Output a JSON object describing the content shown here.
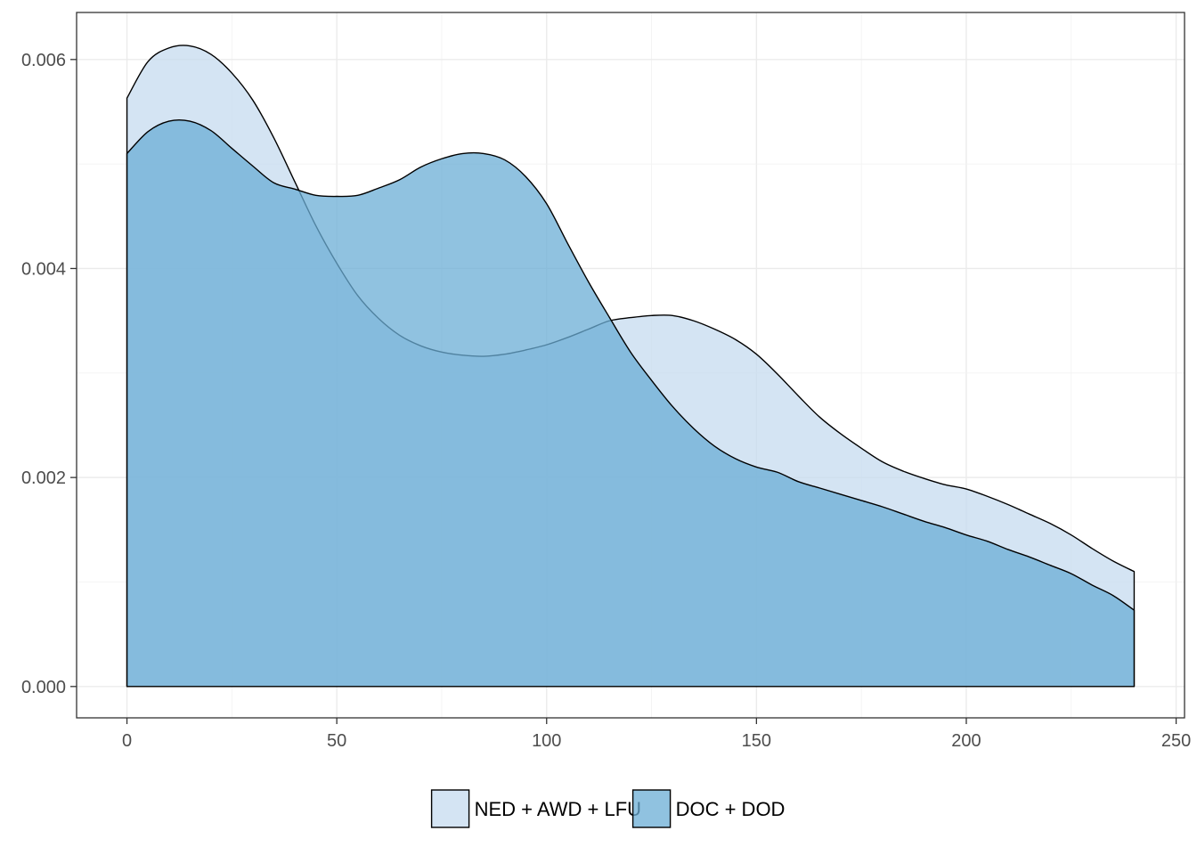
{
  "chart_data": {
    "type": "area",
    "subtype": "density",
    "title": "",
    "xlabel": "",
    "ylabel": "",
    "xlim": [
      -12,
      252
    ],
    "ylim": [
      -0.0003,
      0.00645
    ],
    "x_ticks": [
      0,
      50,
      100,
      150,
      200,
      250
    ],
    "x_tick_labels": [
      "0",
      "50",
      "100",
      "150",
      "200",
      "250"
    ],
    "y_ticks": [
      0.0,
      0.002,
      0.004,
      0.006
    ],
    "y_tick_labels": [
      "0.000",
      "0.002",
      "0.004",
      "0.006"
    ],
    "grid": true,
    "legend_position": "bottom",
    "series": [
      {
        "name": "NED + AWD + LFU",
        "color": "#c6dbef",
        "opacity": 0.75,
        "x": [
          0,
          5,
          10,
          15,
          20,
          25,
          30,
          35,
          40,
          45,
          50,
          55,
          60,
          65,
          70,
          75,
          80,
          85,
          90,
          95,
          100,
          105,
          110,
          115,
          120,
          125,
          130,
          135,
          140,
          145,
          150,
          155,
          160,
          165,
          170,
          175,
          180,
          185,
          190,
          195,
          200,
          205,
          210,
          215,
          220,
          225,
          230,
          235,
          240
        ],
        "y": [
          0.00563,
          0.00598,
          0.00611,
          0.00613,
          0.00605,
          0.00587,
          0.00561,
          0.00525,
          0.00483,
          0.00441,
          0.00405,
          0.00374,
          0.00352,
          0.00336,
          0.00326,
          0.0032,
          0.00317,
          0.00316,
          0.00318,
          0.00322,
          0.00327,
          0.00334,
          0.00342,
          0.0035,
          0.00353,
          0.00355,
          0.00355,
          0.0035,
          0.00342,
          0.00332,
          0.00318,
          0.00299,
          0.00278,
          0.00258,
          0.00242,
          0.00228,
          0.00215,
          0.00206,
          0.00199,
          0.00193,
          0.00189,
          0.00182,
          0.00174,
          0.00165,
          0.00156,
          0.00145,
          0.00132,
          0.0012,
          0.0011
        ]
      },
      {
        "name": "DOC + DOD",
        "color": "#6baed6",
        "opacity": 0.75,
        "x": [
          0,
          5,
          10,
          15,
          20,
          25,
          30,
          35,
          40,
          45,
          50,
          55,
          60,
          65,
          70,
          75,
          80,
          85,
          90,
          95,
          100,
          105,
          110,
          115,
          120,
          125,
          130,
          135,
          140,
          145,
          150,
          155,
          160,
          165,
          170,
          175,
          180,
          185,
          190,
          195,
          200,
          205,
          210,
          215,
          220,
          225,
          230,
          235,
          240
        ],
        "y": [
          0.0051,
          0.00531,
          0.00541,
          0.00541,
          0.00532,
          0.00515,
          0.00498,
          0.00482,
          0.00476,
          0.0047,
          0.00469,
          0.0047,
          0.00477,
          0.00485,
          0.00497,
          0.00505,
          0.0051,
          0.0051,
          0.00504,
          0.00488,
          0.00462,
          0.00424,
          0.00387,
          0.00353,
          0.0032,
          0.00293,
          0.00268,
          0.00247,
          0.0023,
          0.00218,
          0.0021,
          0.00205,
          0.00196,
          0.0019,
          0.00184,
          0.00178,
          0.00172,
          0.00165,
          0.00158,
          0.00152,
          0.00145,
          0.00139,
          0.00131,
          0.00124,
          0.00116,
          0.00108,
          0.00097,
          0.00087,
          0.00073
        ]
      }
    ]
  }
}
